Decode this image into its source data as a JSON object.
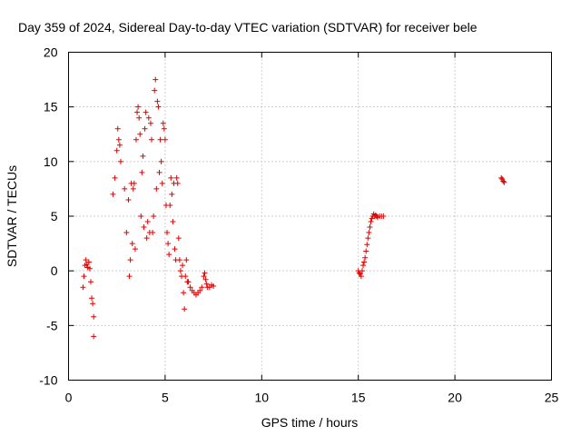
{
  "chart_data": {
    "type": "scatter",
    "title": "Day 359 of 2024, Sidereal Day-to-day VTEC variation (SDTVAR) for receiver bele",
    "xlabel": "GPS time / hours",
    "ylabel": "SDTVAR / TECUs",
    "xlim": [
      0,
      25
    ],
    "ylim": [
      -10,
      20
    ],
    "xticks": [
      0,
      5,
      10,
      15,
      20,
      25
    ],
    "yticks": [
      -10,
      -5,
      0,
      5,
      10,
      15,
      20
    ],
    "grid": true,
    "marker": "plus",
    "color": "#e00000",
    "series": [
      {
        "name": "SDTVAR",
        "x": [
          0.75,
          0.8,
          0.85,
          0.9,
          0.95,
          1.0,
          1.05,
          1.1,
          1.15,
          1.2,
          1.25,
          1.3,
          1.3,
          2.3,
          2.4,
          2.5,
          2.55,
          2.6,
          2.65,
          2.7,
          2.9,
          3.0,
          3.1,
          3.15,
          3.2,
          3.25,
          3.3,
          3.35,
          3.4,
          3.45,
          3.5,
          3.55,
          3.6,
          3.65,
          3.7,
          3.75,
          3.8,
          3.85,
          3.9,
          3.95,
          4.0,
          4.05,
          4.1,
          4.15,
          4.2,
          4.25,
          4.3,
          4.35,
          4.4,
          4.45,
          4.5,
          4.55,
          4.6,
          4.65,
          4.7,
          4.75,
          4.8,
          4.85,
          4.9,
          4.95,
          5.0,
          5.05,
          5.1,
          5.15,
          5.2,
          5.25,
          5.3,
          5.35,
          5.4,
          5.45,
          5.5,
          5.55,
          5.6,
          5.65,
          5.7,
          5.75,
          5.8,
          5.85,
          5.9,
          5.95,
          6.0,
          6.05,
          6.1,
          6.15,
          6.2,
          6.3,
          6.4,
          6.5,
          6.6,
          6.7,
          6.8,
          6.9,
          7.0,
          7.05,
          7.1,
          7.15,
          7.2,
          7.3,
          7.4,
          7.5,
          15.0,
          15.05,
          15.1,
          15.15,
          15.2,
          15.25,
          15.3,
          15.35,
          15.4,
          15.45,
          15.5,
          15.55,
          15.6,
          15.65,
          15.7,
          15.75,
          15.8,
          15.85,
          15.9,
          15.95,
          16.0,
          16.1,
          16.2,
          16.3,
          22.4,
          22.45,
          22.5,
          22.55
        ],
        "y": [
          -1.5,
          -0.5,
          0.5,
          1.0,
          0.6,
          0.3,
          0.8,
          0.2,
          -1.0,
          -2.5,
          -3.0,
          -4.2,
          -6.0,
          7.0,
          8.5,
          11.0,
          13.0,
          12.0,
          11.5,
          10.0,
          7.5,
          3.5,
          6.5,
          -0.5,
          1.0,
          8.0,
          2.5,
          7.5,
          8.0,
          2.0,
          12.0,
          14.5,
          15.0,
          14.0,
          12.5,
          5.0,
          9.0,
          10.5,
          4.0,
          13.0,
          14.5,
          3.0,
          4.5,
          14.0,
          3.5,
          13.5,
          12.0,
          3.5,
          5.0,
          16.5,
          17.5,
          7.5,
          15.5,
          15.0,
          9.0,
          12.0,
          10.0,
          8.0,
          13.5,
          13.0,
          12.0,
          6.0,
          3.5,
          2.5,
          1.5,
          6.0,
          8.5,
          7.0,
          4.5,
          8.0,
          2.0,
          1.0,
          8.5,
          8.0,
          3.0,
          1.0,
          0.0,
          -0.5,
          0.5,
          -2.0,
          -3.5,
          -0.5,
          1.0,
          -1.0,
          -1.0,
          -1.5,
          -1.8,
          -2.0,
          -2.2,
          -2.0,
          -1.8,
          -1.5,
          -0.5,
          -0.2,
          -0.8,
          -1.2,
          -1.5,
          -1.5,
          -1.3,
          -1.4,
          0.0,
          -0.2,
          -0.3,
          -0.5,
          0.0,
          0.5,
          0.8,
          1.2,
          1.8,
          2.4,
          3.0,
          3.5,
          4.0,
          4.5,
          4.8,
          5.0,
          5.2,
          5.0,
          5.1,
          5.0,
          4.9,
          5.0,
          5.0,
          5.0,
          8.5,
          8.4,
          8.2,
          8.1
        ]
      }
    ]
  }
}
